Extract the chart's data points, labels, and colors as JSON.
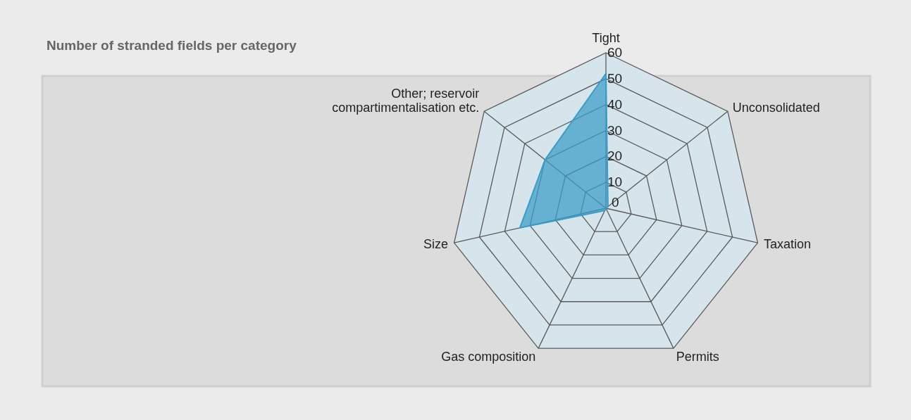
{
  "chart_data": {
    "type": "radar",
    "title": "Number of stranded fields per category",
    "categories": [
      "Tight",
      "Unconsolidated",
      "Taxation",
      "Permits",
      "Gas composition",
      "Size",
      "Other; reservoir compartimentalisation etc."
    ],
    "series": [
      {
        "color": "#3a9cc8",
        "values": [
          52,
          1,
          0,
          0,
          1,
          34,
          30
        ]
      }
    ],
    "ylim": [
      0,
      60
    ],
    "yticks": [
      0,
      10,
      20,
      30,
      40,
      50,
      60
    ],
    "grid": true
  }
}
